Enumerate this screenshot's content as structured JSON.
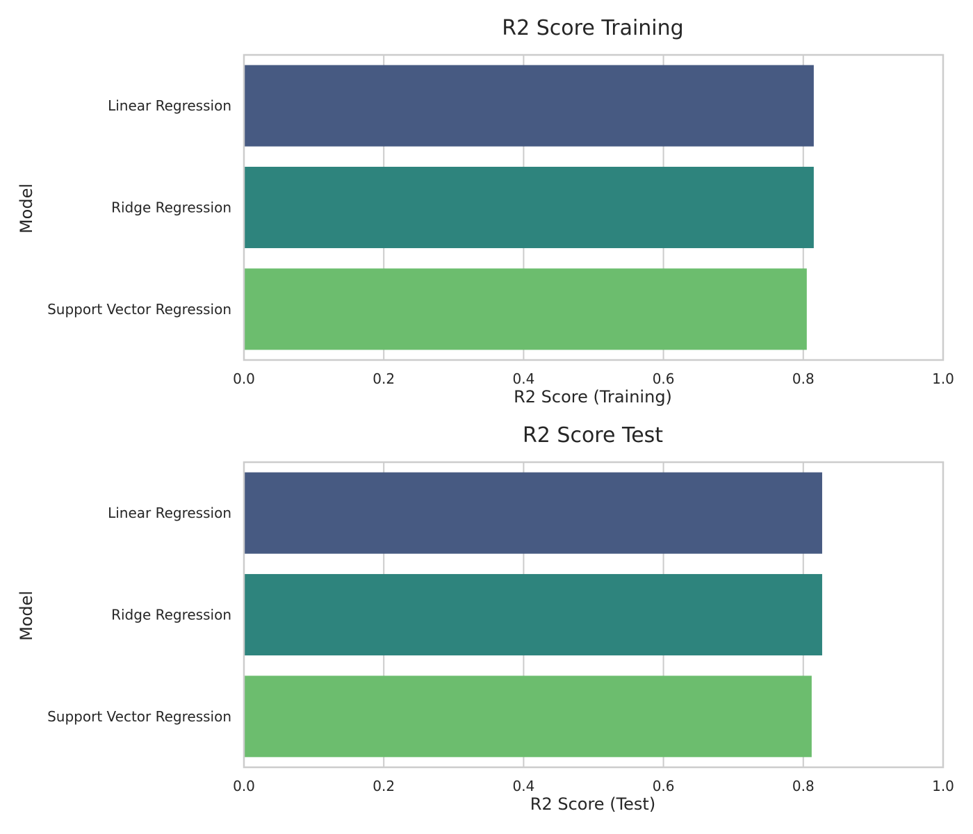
{
  "chart_data": [
    {
      "type": "bar",
      "orientation": "horizontal",
      "title": "R2 Score Training",
      "xlabel": "R2 Score (Training)",
      "ylabel": "Model",
      "categories": [
        "Linear Regression",
        "Ridge Regression",
        "Support Vector Regression"
      ],
      "values": [
        0.815,
        0.815,
        0.805
      ],
      "colors": [
        "#475a82",
        "#2e847d",
        "#6cbd6e"
      ],
      "xlim": [
        0,
        1.0
      ],
      "xticks": [
        "0.0",
        "0.2",
        "0.4",
        "0.6",
        "0.8",
        "1.0"
      ],
      "grid": true
    },
    {
      "type": "bar",
      "orientation": "horizontal",
      "title": "R2 Score Test",
      "xlabel": "R2 Score (Test)",
      "ylabel": "Model",
      "categories": [
        "Linear Regression",
        "Ridge Regression",
        "Support Vector Regression"
      ],
      "values": [
        0.827,
        0.827,
        0.812
      ],
      "colors": [
        "#475a82",
        "#2e847d",
        "#6cbd6e"
      ],
      "xlim": [
        0,
        1.0
      ],
      "xticks": [
        "0.0",
        "0.2",
        "0.4",
        "0.6",
        "0.8",
        "1.0"
      ],
      "grid": true
    }
  ]
}
